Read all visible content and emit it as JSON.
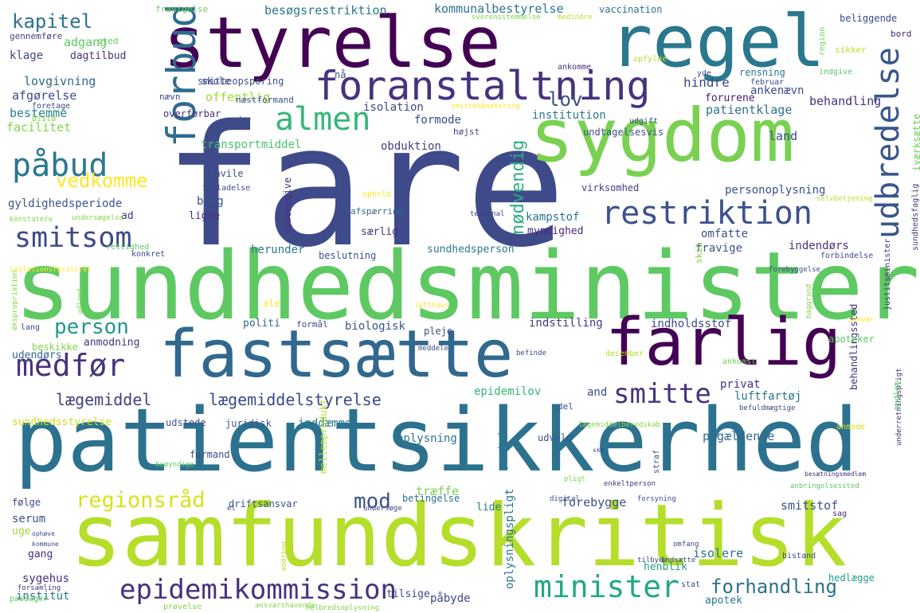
{
  "cloud": {
    "words": [
      {
        "text": "fare",
        "color": "#3f4a8a"
      },
      {
        "text": "sundhedsminister",
        "color": "#5ec962"
      },
      {
        "text": "patientsikkerhed",
        "color": "#2c728e"
      },
      {
        "text": "samfundskritisk",
        "color": "#b5de2b"
      },
      {
        "text": "styrelse",
        "color": "#440154"
      },
      {
        "text": "regel",
        "color": "#2a788e"
      },
      {
        "text": "sygdom",
        "color": "#7ad151"
      },
      {
        "text": "fastsætte",
        "color": "#31688e"
      },
      {
        "text": "farlig",
        "color": "#440154"
      },
      {
        "text": "foranstaltning",
        "color": "#46327e"
      },
      {
        "text": "forbud",
        "color": "#2f6c8e"
      },
      {
        "text": "udbredelse",
        "color": "#39568c"
      },
      {
        "text": "almen",
        "color": "#35b779"
      },
      {
        "text": "påbud",
        "color": "#2a788e"
      },
      {
        "text": "restriktion",
        "color": "#3b528b"
      },
      {
        "text": "smitsom",
        "color": "#3e4989"
      },
      {
        "text": "medfør",
        "color": "#46337e"
      },
      {
        "text": "minister",
        "color": "#22a884"
      },
      {
        "text": "smitte",
        "color": "#46327e"
      },
      {
        "text": "epidemikommission",
        "color": "#46327e"
      },
      {
        "text": "regionsråd",
        "color": "#d8e219"
      },
      {
        "text": "person",
        "color": "#1f9a8a"
      },
      {
        "text": "kapitel",
        "color": "#2c728e"
      },
      {
        "text": "lov",
        "color": "#3b528b"
      },
      {
        "text": "vedkomme",
        "color": "#fde725"
      },
      {
        "text": "nødvendig",
        "color": "#29af7f"
      },
      {
        "text": "lægemiddel",
        "color": "#433e85"
      },
      {
        "text": "lægemiddelstyrelse",
        "color": "#3e4989"
      },
      {
        "text": "forhandling",
        "color": "#2c728e"
      },
      {
        "text": "mod",
        "color": "#3b528b"
      },
      {
        "text": "besøgsrestriktion",
        "color": "#2a788e"
      },
      {
        "text": "kommunalbestyrelse",
        "color": "#2c728e"
      },
      {
        "text": "hindre",
        "color": "#3f4889"
      },
      {
        "text": "behandling",
        "color": "#46327e"
      },
      {
        "text": "adgang",
        "color": "#5ec962"
      },
      {
        "text": "klage",
        "color": "#414487"
      },
      {
        "text": "dagtilbud",
        "color": "#46337e"
      },
      {
        "text": "skole",
        "color": "#443983"
      },
      {
        "text": "lovgivning",
        "color": "#31688e"
      },
      {
        "text": "afgørelse",
        "color": "#3e4a89"
      },
      {
        "text": "offentlig",
        "color": "#a0da39"
      },
      {
        "text": "bestemme",
        "color": "#25848e"
      },
      {
        "text": "facilitet",
        "color": "#84d44b"
      },
      {
        "text": "isolation",
        "color": "#3e4989"
      },
      {
        "text": "formode",
        "color": "#3f4a8a"
      },
      {
        "text": "institution",
        "color": "#2a788e"
      },
      {
        "text": "obduktion",
        "color": "#433e85"
      },
      {
        "text": "transportmiddel",
        "color": "#4ac16d"
      },
      {
        "text": "patientklage",
        "color": "#2c728e"
      },
      {
        "text": "ankenævn",
        "color": "#3e4989"
      },
      {
        "text": "forurene",
        "color": "#482173"
      },
      {
        "text": "land",
        "color": "#3e4989"
      },
      {
        "text": "personoplysning",
        "color": "#3b528b"
      },
      {
        "text": "kampstof",
        "color": "#2c728e"
      },
      {
        "text": "myndighed",
        "color": "#482878"
      },
      {
        "text": "omfatte",
        "color": "#3b528b"
      },
      {
        "text": "fravige",
        "color": "#39568c"
      },
      {
        "text": "indendørs",
        "color": "#46327e"
      },
      {
        "text": "gyldighedsperiode",
        "color": "#39568c"
      },
      {
        "text": "brug",
        "color": "#3b528b"
      },
      {
        "text": "ligne",
        "color": "#472f7d"
      },
      {
        "text": "ad",
        "color": "#472f7d"
      },
      {
        "text": "særlig",
        "color": "#46337e"
      },
      {
        "text": "herunder",
        "color": "#2a788e"
      },
      {
        "text": "sundhedsperson",
        "color": "#2a788e"
      },
      {
        "text": "politi",
        "color": "#31688e"
      },
      {
        "text": "biologisk",
        "color": "#3b528b"
      },
      {
        "text": "indstilling",
        "color": "#433e85"
      },
      {
        "text": "indholdsstof",
        "color": "#3e4989"
      },
      {
        "text": "anmodning",
        "color": "#46327e"
      },
      {
        "text": "udendørs",
        "color": "#31688e"
      },
      {
        "text": "epidemilov",
        "color": "#35b779"
      },
      {
        "text": "and",
        "color": "#3e4989"
      },
      {
        "text": "privat",
        "color": "#46327e"
      },
      {
        "text": "luftfartøj",
        "color": "#2c728e"
      },
      {
        "text": "sundhedsstyrelse",
        "color": "#cde11d"
      },
      {
        "text": "oplysning",
        "color": "#2c728e"
      },
      {
        "text": "inddæmme",
        "color": "#2a788e"
      },
      {
        "text": "pågældende",
        "color": "#31688e"
      },
      {
        "text": "serum",
        "color": "#3b528b"
      },
      {
        "text": "uge",
        "color": "#a0da39"
      },
      {
        "text": "gang",
        "color": "#472f7d"
      },
      {
        "text": "sygehus",
        "color": "#46337e"
      },
      {
        "text": "institut",
        "color": "#2a788e"
      },
      {
        "text": "påbyde",
        "color": "#3e4989"
      },
      {
        "text": "træffe",
        "color": "#7ad151"
      },
      {
        "text": "lide",
        "color": "#2a788e"
      },
      {
        "text": "forebygge",
        "color": "#3b528b"
      },
      {
        "text": "smitstof",
        "color": "#3b528b"
      },
      {
        "text": "isolere",
        "color": "#2c728e"
      },
      {
        "text": "henblik",
        "color": "#1f9e89"
      },
      {
        "text": "apotek",
        "color": "#2a788e"
      },
      {
        "text": "hedlægge",
        "color": "#1f9e89"
      },
      {
        "text": "beliggende",
        "color": "#3e4989"
      },
      {
        "text": "bord",
        "color": "#482878"
      },
      {
        "text": "sikker",
        "color": "#b8de29"
      },
      {
        "text": "vaccination",
        "color": "#2c728e"
      },
      {
        "text": "fravigelse",
        "color": "#6ece58"
      },
      {
        "text": "gennemføre",
        "color": "#433e85"
      },
      {
        "text": "sted",
        "color": "#5ec962"
      },
      {
        "text": "nå",
        "color": "#3b528b"
      },
      {
        "text": "smitteopsporing",
        "color": "#3b528b"
      },
      {
        "text": "næstformand",
        "color": "#3b528b"
      },
      {
        "text": "overførbar",
        "color": "#46327e"
      },
      {
        "text": "højst",
        "color": "#433e85"
      },
      {
        "text": "undtagelsesvis",
        "color": "#3b528b"
      },
      {
        "text": "påhvile",
        "color": "#3b528b"
      },
      {
        "text": "tilladelse",
        "color": "#3e4989"
      },
      {
        "text": "ophold",
        "color": "#fde725"
      },
      {
        "text": "afspærring",
        "color": "#31688e"
      },
      {
        "text": "virksomhed",
        "color": "#433e85"
      },
      {
        "text": "videregive",
        "color": "#46327e"
      },
      {
        "text": "beslutning",
        "color": "#3b528b"
      },
      {
        "text": "formål",
        "color": "#3e4989"
      },
      {
        "text": "pleje",
        "color": "#3e4989"
      },
      {
        "text": "ankomst",
        "color": "#6ece58"
      },
      {
        "text": "behandlingssted",
        "color": "#46327e"
      },
      {
        "text": "juridisk",
        "color": "#3b528b"
      },
      {
        "text": "udstede",
        "color": "#3b528b"
      },
      {
        "text": "formand",
        "color": "#3e4989"
      },
      {
        "text": "mellemprodukt",
        "color": "#b5de2b"
      },
      {
        "text": "driftsansvar",
        "color": "#3b528b"
      },
      {
        "text": "betingelse",
        "color": "#2c728e"
      },
      {
        "text": "udvalg",
        "color": "#3b528b"
      },
      {
        "text": "følge",
        "color": "#3e4989"
      },
      {
        "text": "periode",
        "color": "#2a788e"
      },
      {
        "text": "oplysningspligt",
        "color": "#2a788e"
      },
      {
        "text": "tilsige",
        "color": "#3e4989"
      },
      {
        "text": "iværksætte",
        "color": "#6ece58"
      },
      {
        "text": "sundhedsfaglig",
        "color": "#46327e"
      },
      {
        "text": "justitsminister",
        "color": "#46327e"
      },
      {
        "text": "apoteker",
        "color": "#5ec962"
      },
      {
        "text": "del",
        "color": "#3e4989"
      },
      {
        "text": "skib",
        "color": "#7ad151"
      },
      {
        "text": "ale",
        "color": "#fde725"
      },
      {
        "text": "lang",
        "color": "#3e4989"
      },
      {
        "text": "konkret",
        "color": "#3e4989"
      },
      {
        "text": "rettighed",
        "color": "#5ec962"
      },
      {
        "text": "beskikke",
        "color": "#84d44b"
      },
      {
        "text": "anmode",
        "color": "#d8e219"
      },
      {
        "text": "december",
        "color": "#b5de2b"
      },
      {
        "text": "region",
        "color": "#7ad151"
      },
      {
        "text": "rensning",
        "color": "#2a788e"
      },
      {
        "text": "februar",
        "color": "#3e4989"
      },
      {
        "text": "yde",
        "color": "#3e4989"
      },
      {
        "text": "udgift",
        "color": "#3e4989"
      },
      {
        "text": "andre",
        "color": "#3e4989"
      },
      {
        "text": "foretage",
        "color": "#3e4989"
      },
      {
        "text": "bistå",
        "color": "#84d44b"
      },
      {
        "text": "nævn",
        "color": "#3e4989"
      },
      {
        "text": "ankomme",
        "color": "#46327e"
      },
      {
        "text": "opfylde",
        "color": "#b5de2b"
      },
      {
        "text": "indgive",
        "color": "#5ec962"
      },
      {
        "text": "konstatere",
        "color": "#84d44b"
      },
      {
        "text": "undersøgelse",
        "color": "#84d44b"
      },
      {
        "text": "terminal",
        "color": "#433e85"
      },
      {
        "text": "selvbetjening",
        "color": "#b5de2b"
      },
      {
        "text": "forebyggelse",
        "color": "#3e4989"
      },
      {
        "text": "forbindelse",
        "color": "#3e4989"
      },
      {
        "text": "isolationsfacilitet",
        "color": "#fde725"
      },
      {
        "text": "ekspropriation",
        "color": "#84d44b"
      },
      {
        "text": "udland",
        "color": "#84d44b"
      },
      {
        "text": "lufthavn",
        "color": "#fde725"
      },
      {
        "text": "befinde",
        "color": "#3e4989"
      },
      {
        "text": "baggrund",
        "color": "#84d44b"
      },
      {
        "text": "samvær",
        "color": "#fde725"
      },
      {
        "text": "meddele",
        "color": "#3e4989"
      },
      {
        "text": "befuldmægtige",
        "color": "#3e4989"
      },
      {
        "text": "underretningspligt",
        "color": "#46327e"
      },
      {
        "text": "medlem",
        "color": "#5ec962"
      },
      {
        "text": "lægemiddelberedskab",
        "color": "#84d44b"
      },
      {
        "text": "beøyndige",
        "color": "#5ec962"
      },
      {
        "text": "pligt",
        "color": "#84d44b"
      },
      {
        "text": "ske",
        "color": "#3e4989"
      },
      {
        "text": "straf",
        "color": "#3e4989"
      },
      {
        "text": "anbringelsessted",
        "color": "#5ec962"
      },
      {
        "text": "besætningsmedlem",
        "color": "#46327e"
      },
      {
        "text": "undersøge",
        "color": "#3e4989"
      },
      {
        "text": "digital",
        "color": "#3e4989"
      },
      {
        "text": "forsyning",
        "color": "#3e4989"
      },
      {
        "text": "enkeltperson",
        "color": "#46327e"
      },
      {
        "text": "sag",
        "color": "#46327e"
      },
      {
        "text": "ophøve",
        "color": "#3e4989"
      },
      {
        "text": "kommune",
        "color": "#3e4989"
      },
      {
        "text": "el",
        "color": "#3e4989"
      },
      {
        "text": "forsamling",
        "color": "#46327e"
      },
      {
        "text": "passager",
        "color": "#5ec962"
      },
      {
        "text": "prøvelse",
        "color": "#84d44b"
      },
      {
        "text": "ansvarshavende",
        "color": "#84d44b"
      },
      {
        "text": "andring",
        "color": "#b5de2b"
      },
      {
        "text": "helbredsoplysning",
        "color": "#84d44b"
      },
      {
        "text": "omfang",
        "color": "#3e4989"
      },
      {
        "text": "tilbyde",
        "color": "#3e4989"
      },
      {
        "text": "indsætte",
        "color": "#3e4989"
      },
      {
        "text": "bistand",
        "color": "#3e4989"
      },
      {
        "text": "stat",
        "color": "#3e4989"
      },
      {
        "text": "overensstemmelse",
        "color": "#84d44b"
      },
      {
        "text": "medindre",
        "color": "#b5de2b"
      },
      {
        "text": "smittehåndtering",
        "color": "#fde725"
      }
    ]
  }
}
